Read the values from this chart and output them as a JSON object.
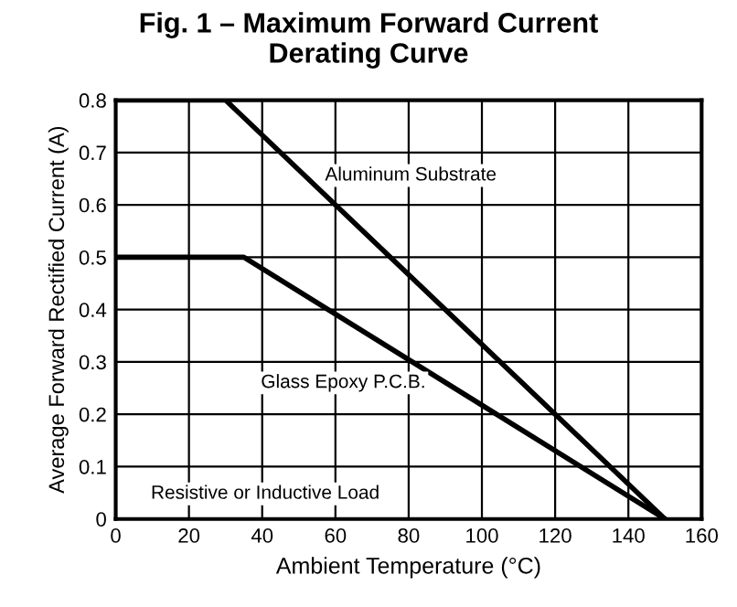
{
  "chart_data": {
    "type": "line",
    "title": "Fig. 1 – Maximum Forward Current\nDerating Curve",
    "xlabel": "Ambient Temperature (°C)",
    "ylabel": "Average Forward Rectified Current (A)",
    "series": [
      {
        "name": "Aluminum Substrate",
        "color": "#000000",
        "x": [
          0,
          30,
          150
        ],
        "values": [
          0.8,
          0.8,
          0
        ]
      },
      {
        "name": "Glass Epoxy P.C.B.",
        "color": "#000000",
        "x": [
          0,
          35,
          150
        ],
        "values": [
          0.5,
          0.5,
          0
        ]
      }
    ],
    "annotations": [
      "Resistive or Inductive Load"
    ],
    "xlim": [
      0,
      160
    ],
    "xticks": [
      0,
      20,
      40,
      60,
      80,
      100,
      120,
      140,
      160
    ],
    "ylim": [
      0,
      0.8
    ],
    "yticks": [
      0,
      0.1,
      0.2,
      0.3,
      0.4,
      0.5,
      0.6,
      0.7,
      0.8
    ],
    "grid": true,
    "marker": "none",
    "line_style": "solid"
  }
}
